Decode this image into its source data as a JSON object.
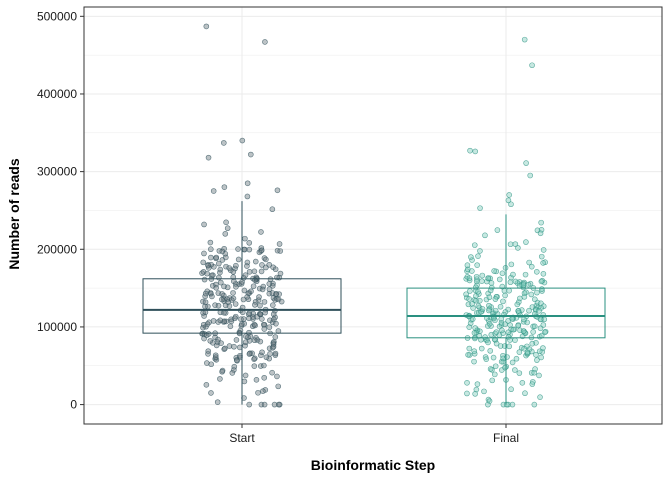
{
  "chart_data": {
    "type": "boxplot_jitter",
    "xlabel": "Bioinformatic Step",
    "ylabel": "Number of reads",
    "ylim": [
      -25000,
      512000
    ],
    "yticks": [
      0,
      100000,
      200000,
      300000,
      400000,
      500000
    ],
    "ytick_labels": [
      "0",
      "100000",
      "200000",
      "300000",
      "400000",
      "500000"
    ],
    "grid": true,
    "categories": [
      "Start",
      "Final"
    ],
    "colors": {
      "Start": "#2F4F5A",
      "Final": "#2A9080",
      "Start_fill": "#6B7B80",
      "Final_fill": "#80CCBC",
      "grid": "#EBEBEB",
      "panel_border": "#333333"
    },
    "boxes": [
      {
        "category": "Start",
        "whisker_low": 0,
        "q1": 92000,
        "median": 122000,
        "q3": 162000,
        "whisker_high": 262000
      },
      {
        "category": "Final",
        "whisker_low": 0,
        "q1": 86000,
        "median": 114000,
        "q3": 150000,
        "whisker_high": 245000
      }
    ],
    "outliers": {
      "Start": [
        467000,
        487000,
        340000,
        337000,
        322000,
        318000,
        285000,
        280000,
        276000,
        275000,
        268000
      ],
      "Final": [
        470000,
        437000,
        327000,
        326000,
        311000,
        295000,
        270000,
        263000,
        258000,
        253000
      ]
    },
    "points_per_group": 300
  }
}
